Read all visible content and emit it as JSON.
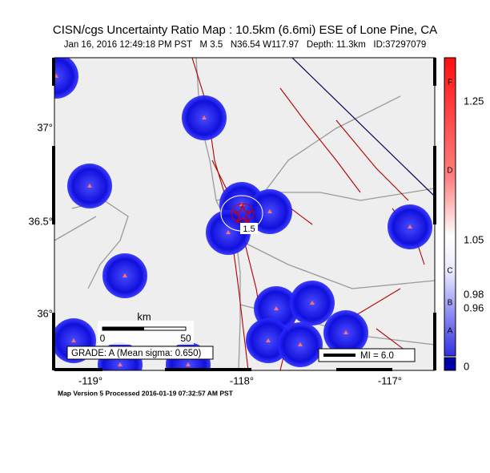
{
  "header": {
    "title": "CISN/cgs Uncertainty Ratio Map : 10.5km (6.6mi) ESE of Lone Pine, CA",
    "subtitle": "Jan 16, 2016 12:49:18 PM PST   M 3.5   N36.54 W117.97   Depth: 11.3km   ID:37297079"
  },
  "map": {
    "lat_labels": [
      "37°",
      "36.5°",
      "36°"
    ],
    "lon_labels": [
      "-119°",
      "-118°",
      "-117°"
    ],
    "contour_label": "1.5",
    "scale": {
      "unit": "km",
      "start": "0",
      "end": "50"
    },
    "grade": "GRADE: A (Mean sigma: 0.650)",
    "mi_legend": "MI = 6.0"
  },
  "colorbar": {
    "values": [
      "1.25",
      "1.05",
      "0.98",
      "0.96",
      "0"
    ],
    "grades": [
      "F",
      "D",
      "C",
      "B",
      "A"
    ]
  },
  "footer": "Map Version 5 Processed 2016-01-19 07:32:57 AM PST"
}
